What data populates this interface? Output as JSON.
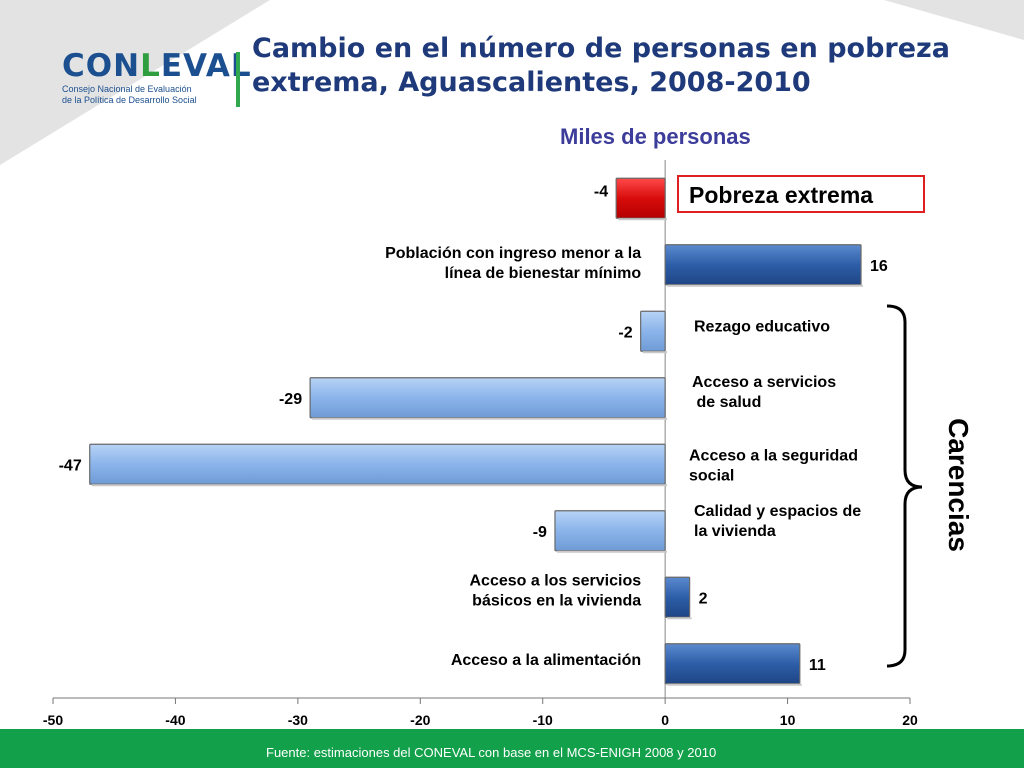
{
  "header": {
    "title_line1": "Cambio en el número de personas en pobreza",
    "title_line2": "extrema, Aguascalientes, 2008-2010",
    "subtitle": "Miles de personas"
  },
  "logo": {
    "word_part1": "CON",
    "word_accent": "L",
    "word_part2": "EVAL",
    "sub_line1": "Consejo Nacional de Evaluación",
    "sub_line2": "de la Política de Desarrollo Social"
  },
  "annotations": {
    "pobreza_extrema": "Pobreza extrema",
    "carencias": "Carencias"
  },
  "footer": {
    "source": "Fuente: estimaciones del CONEVAL con base en el MCS-ENIGH 2008 y 2010"
  },
  "colors": {
    "red": "#e21414",
    "dark_blue": "#2d5ea8",
    "light_blue": "#8ab4ea",
    "title": "#1f3a7a",
    "green": "#12a04a"
  },
  "chart_data": {
    "type": "bar",
    "orientation": "horizontal",
    "xlim": [
      -50,
      20
    ],
    "xticks": [
      "-50",
      "-40",
      "-30",
      "-20",
      "-10",
      "0",
      "10",
      "20"
    ],
    "categories": [
      {
        "label": "",
        "value": -4,
        "value_label": "-4",
        "color": "red"
      },
      {
        "label": "Población con ingreso menor a la\nlínea de bienestar mínimo",
        "value": 16,
        "value_label": "16",
        "color": "dark_blue"
      },
      {
        "label": "Rezago educativo",
        "value": -2,
        "value_label": "-2",
        "color": "light_blue"
      },
      {
        "label": "Acceso a servicios\n de salud",
        "value": -29,
        "value_label": "-29",
        "color": "light_blue"
      },
      {
        "label": "Acceso a  la seguridad\nsocial",
        "value": -47,
        "value_label": "-47",
        "color": "light_blue"
      },
      {
        "label": "Calidad y espacios de\nla vivienda",
        "value": -9,
        "value_label": "-9",
        "color": "light_blue"
      },
      {
        "label": "Acceso a los servicios\nbásicos en la vivienda",
        "value": 2,
        "value_label": "2",
        "color": "dark_blue"
      },
      {
        "label": "Acceso a la alimentación",
        "value": 11,
        "value_label": "11",
        "color": "dark_blue"
      }
    ]
  }
}
